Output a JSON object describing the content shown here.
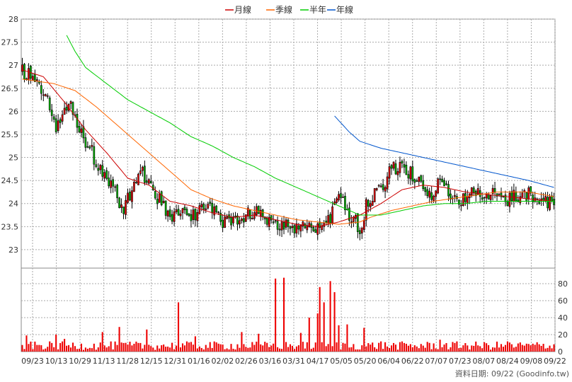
{
  "chart_data": {
    "type": "candlestick",
    "legend": [
      {
        "name": "月線",
        "color": "#cc0000"
      },
      {
        "name": "季線",
        "color": "#ff6600"
      },
      {
        "name": "半年",
        "color": "#00cc00"
      },
      {
        "name": "年線",
        "color": "#0055cc"
      }
    ],
    "price_axis": {
      "min": 22.6,
      "max": 28,
      "ticks": [
        28,
        27.5,
        27,
        26.5,
        26,
        25.5,
        25,
        24.5,
        24,
        23.5,
        23
      ],
      "tick_labels": [
        "28",
        "27.5",
        "27",
        "26.5",
        "26",
        "25.5",
        "25",
        "24.5",
        "24",
        "23.5",
        "23"
      ]
    },
    "volume_axis": {
      "min": 0,
      "max": 90,
      "ticks": [
        0,
        20,
        40,
        60,
        80
      ],
      "tick_labels": [
        "0",
        "20",
        "40",
        "60",
        "80"
      ]
    },
    "x_labels": [
      "09/23",
      "10/13",
      "10/29",
      "11/13",
      "11/28",
      "12/15",
      "12/31",
      "01/16",
      "02/02",
      "02/26",
      "03/16",
      "03/31",
      "04/17",
      "05/05",
      "05/20",
      "06/04",
      "06/22",
      "07/07",
      "07/23",
      "08/07",
      "08/24",
      "09/08",
      "09/22"
    ],
    "price_anchors": [
      [
        0,
        26.9
      ],
      [
        10,
        26.5
      ],
      [
        16,
        25.6
      ],
      [
        22,
        26.2
      ],
      [
        30,
        25.3
      ],
      [
        40,
        24.6
      ],
      [
        48,
        23.9
      ],
      [
        56,
        24.7
      ],
      [
        62,
        24.3
      ],
      [
        68,
        23.8
      ],
      [
        80,
        23.7
      ],
      [
        88,
        24.0
      ],
      [
        96,
        23.6
      ],
      [
        104,
        23.7
      ],
      [
        112,
        23.8
      ],
      [
        120,
        23.6
      ],
      [
        126,
        23.5
      ],
      [
        132,
        23.5
      ],
      [
        138,
        23.4
      ],
      [
        146,
        23.6
      ],
      [
        150,
        24.3
      ],
      [
        156,
        23.7
      ],
      [
        160,
        23.5
      ],
      [
        164,
        24.1
      ],
      [
        170,
        24.3
      ],
      [
        176,
        24.8
      ],
      [
        182,
        24.7
      ],
      [
        188,
        24.5
      ],
      [
        194,
        24.2
      ],
      [
        198,
        24.6
      ],
      [
        203,
        24.2
      ],
      [
        207,
        24.0
      ],
      [
        214,
        24.2
      ],
      [
        222,
        24.2
      ],
      [
        230,
        24.1
      ],
      [
        240,
        24.2
      ],
      [
        245,
        24.1
      ],
      [
        252,
        23.95
      ]
    ],
    "ma_month": [
      [
        0,
        26.9
      ],
      [
        10,
        26.75
      ],
      [
        20,
        26.2
      ],
      [
        30,
        25.6
      ],
      [
        40,
        25.1
      ],
      [
        50,
        24.55
      ],
      [
        60,
        24.4
      ],
      [
        70,
        24.05
      ],
      [
        80,
        23.95
      ],
      [
        90,
        23.8
      ],
      [
        100,
        23.7
      ],
      [
        110,
        23.75
      ],
      [
        120,
        23.65
      ],
      [
        130,
        23.55
      ],
      [
        140,
        23.5
      ],
      [
        150,
        23.6
      ],
      [
        160,
        23.75
      ],
      [
        170,
        24.0
      ],
      [
        180,
        24.3
      ],
      [
        190,
        24.4
      ],
      [
        200,
        24.35
      ],
      [
        210,
        24.25
      ],
      [
        220,
        24.2
      ],
      [
        230,
        24.15
      ],
      [
        240,
        24.1
      ],
      [
        252,
        24.05
      ]
    ],
    "ma_quarter": [
      [
        0,
        26.7
      ],
      [
        15,
        26.6
      ],
      [
        25,
        26.45
      ],
      [
        35,
        26.1
      ],
      [
        50,
        25.5
      ],
      [
        60,
        25.1
      ],
      [
        70,
        24.7
      ],
      [
        80,
        24.3
      ],
      [
        90,
        24.1
      ],
      [
        100,
        23.95
      ],
      [
        110,
        23.85
      ],
      [
        120,
        23.75
      ],
      [
        130,
        23.65
      ],
      [
        140,
        23.6
      ],
      [
        150,
        23.55
      ],
      [
        160,
        23.6
      ],
      [
        165,
        23.7
      ],
      [
        175,
        23.85
      ],
      [
        185,
        23.95
      ],
      [
        195,
        24.05
      ],
      [
        210,
        24.15
      ],
      [
        225,
        24.25
      ],
      [
        240,
        24.25
      ],
      [
        252,
        24.15
      ]
    ],
    "ma_half": [
      [
        21,
        27.65
      ],
      [
        25,
        27.3
      ],
      [
        30,
        26.95
      ],
      [
        40,
        26.6
      ],
      [
        50,
        26.25
      ],
      [
        60,
        26.0
      ],
      [
        70,
        25.75
      ],
      [
        80,
        25.45
      ],
      [
        90,
        25.25
      ],
      [
        100,
        25.0
      ],
      [
        110,
        24.8
      ],
      [
        120,
        24.55
      ],
      [
        130,
        24.35
      ],
      [
        140,
        24.15
      ],
      [
        150,
        23.95
      ],
      [
        160,
        23.75
      ],
      [
        170,
        23.75
      ],
      [
        180,
        23.85
      ],
      [
        190,
        23.95
      ],
      [
        200,
        24.0
      ],
      [
        210,
        24.0
      ],
      [
        220,
        24.05
      ],
      [
        235,
        24.05
      ],
      [
        252,
        24.05
      ]
    ],
    "ma_year": [
      [
        148,
        25.9
      ],
      [
        155,
        25.55
      ],
      [
        160,
        25.35
      ],
      [
        170,
        25.2
      ],
      [
        180,
        25.1
      ],
      [
        190,
        25.0
      ],
      [
        200,
        24.9
      ],
      [
        210,
        24.8
      ],
      [
        220,
        24.7
      ],
      [
        230,
        24.6
      ],
      [
        240,
        24.5
      ],
      [
        252,
        24.35
      ]
    ],
    "volume_peaks": [
      [
        2,
        19
      ],
      [
        16,
        20
      ],
      [
        20,
        15
      ],
      [
        38,
        23
      ],
      [
        46,
        29
      ],
      [
        59,
        26
      ],
      [
        74,
        58
      ],
      [
        82,
        18
      ],
      [
        104,
        23
      ],
      [
        112,
        21
      ],
      [
        120,
        86
      ],
      [
        124,
        87
      ],
      [
        132,
        22
      ],
      [
        136,
        40
      ],
      [
        140,
        45
      ],
      [
        141,
        76
      ],
      [
        143,
        58
      ],
      [
        146,
        83
      ],
      [
        148,
        70
      ],
      [
        150,
        31
      ],
      [
        154,
        32
      ],
      [
        162,
        28
      ],
      [
        170,
        12
      ],
      [
        198,
        14
      ],
      [
        210,
        10
      ],
      [
        230,
        12
      ],
      [
        250,
        7
      ]
    ],
    "footer_text": "資料日期: 09/22  (Goodinfo.tw)"
  }
}
